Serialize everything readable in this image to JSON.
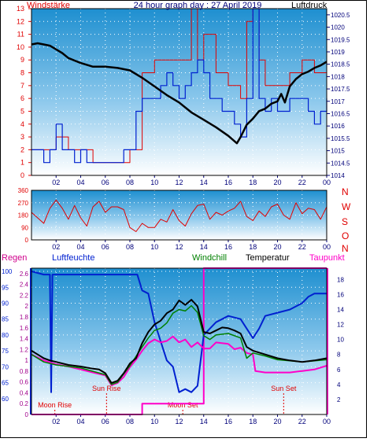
{
  "header": {
    "left_label": "Windstärke",
    "title": "24 hour graph day : 27 April 2019",
    "right_label": "Luftdruck"
  },
  "colors": {
    "red": "#e00000",
    "blue": "#0020d0",
    "black": "#000000",
    "magenta": "#ff00c8",
    "green": "#008000",
    "purple": "#a0008c",
    "navy": "#00007a",
    "sky_top": "#1e8fd0",
    "sky_bottom": "#ffffff"
  },
  "chart_data": [
    {
      "id": "wind-pressure",
      "type": "line",
      "title": "24 hour graph day : 27 April 2019",
      "x_ticks": [
        "02",
        "04",
        "06",
        "08",
        "10",
        "12",
        "14",
        "16",
        "18",
        "20",
        "22",
        "00"
      ],
      "xlim": [
        0,
        24
      ],
      "y_left_label": "Windstärke",
      "y_left_ticks": [
        "0",
        "1",
        "2",
        "3",
        "4",
        "5",
        "6",
        "7",
        "8",
        "9",
        "10",
        "11",
        "12",
        "13"
      ],
      "ylim_left": [
        0,
        13
      ],
      "y_right_label": "Luftdruck",
      "y_right_ticks": [
        "1014",
        "1014.5",
        "1015",
        "1015.5",
        "1016",
        "1016.5",
        "1017",
        "1017.5",
        "1018",
        "1018.5",
        "1019",
        "1019.5",
        "1020",
        "1020.5"
      ],
      "ylim_right": [
        1014,
        1020.75
      ],
      "series": [
        {
          "name": "Luftdruck",
          "axis": "right",
          "x": [
            0,
            0.5,
            1,
            1.5,
            2,
            2.5,
            3,
            4,
            5,
            6,
            7,
            8,
            9,
            10,
            11,
            12,
            13,
            14,
            15,
            16,
            16.7,
            17,
            17.5,
            18,
            18.5,
            19,
            19.5,
            20,
            20.3,
            20.6,
            21,
            21.5,
            22,
            22.5,
            23,
            23.5,
            24
          ],
          "y": [
            1019.3,
            1019.35,
            1019.3,
            1019.25,
            1019.1,
            1018.95,
            1018.75,
            1018.55,
            1018.4,
            1018.4,
            1018.35,
            1018.25,
            1017.95,
            1017.6,
            1017.25,
            1016.95,
            1016.55,
            1016.25,
            1015.95,
            1015.6,
            1015.3,
            1015.55,
            1016.05,
            1016.3,
            1016.6,
            1016.7,
            1016.9,
            1017.0,
            1017.3,
            1016.95,
            1017.6,
            1017.9,
            1018.1,
            1018.2,
            1018.35,
            1018.45,
            1018.6
          ]
        },
        {
          "name": "Windstärke",
          "axis": "left",
          "x": [
            0,
            0.5,
            1,
            1.5,
            2,
            2.5,
            3,
            3.5,
            4,
            4.5,
            5,
            5.5,
            6,
            6.5,
            7,
            7.5,
            8,
            8.5,
            9,
            9.5,
            10,
            10.5,
            11,
            11.5,
            12,
            12.5,
            13,
            13.5,
            14,
            14.5,
            15,
            15.5,
            16,
            16.5,
            17,
            17.5,
            18,
            18.5,
            19,
            19.5,
            20,
            20.5,
            21,
            21.5,
            22,
            22.5,
            23,
            23.5,
            24
          ],
          "y": [
            2,
            2,
            1,
            2,
            4,
            2,
            2,
            1,
            2,
            1,
            1,
            1,
            1,
            1,
            1,
            2,
            2,
            5,
            6,
            6,
            6,
            7,
            8,
            7,
            6,
            7,
            8,
            9,
            8,
            6,
            6,
            5,
            5,
            4,
            3,
            6,
            13,
            6,
            5,
            6,
            5,
            5,
            6,
            6,
            6,
            5,
            4,
            5,
            6
          ]
        },
        {
          "name": "Windböen",
          "axis": "left",
          "x": [
            0,
            1,
            2,
            3,
            4,
            5,
            6,
            7,
            8,
            9,
            10,
            11,
            12,
            12.5,
            13,
            13.5,
            14,
            15,
            16,
            17,
            17.5,
            18,
            18.5,
            19,
            20,
            21,
            22,
            23,
            24
          ],
          "y": [
            2,
            2,
            3,
            2,
            2,
            1,
            1,
            1,
            2,
            8,
            9,
            9,
            9,
            9,
            13,
            9,
            11,
            8,
            7,
            6,
            12,
            13,
            9,
            7,
            7,
            8,
            9,
            8,
            9
          ]
        }
      ]
    },
    {
      "id": "wind-direction",
      "type": "line",
      "x_ticks": [
        "02",
        "04",
        "06",
        "08",
        "10",
        "12",
        "14",
        "16",
        "18",
        "20",
        "22",
        "00"
      ],
      "xlim": [
        0,
        24
      ],
      "y_ticks": [
        "0",
        "90",
        "180",
        "270",
        "360"
      ],
      "ylim": [
        0,
        360
      ],
      "y_right_labels": [
        "N",
        "W",
        "S",
        "O",
        "N"
      ],
      "series": [
        {
          "name": "Windrichtung",
          "x": [
            0,
            0.5,
            1,
            1.5,
            2,
            2.5,
            3,
            3.5,
            4,
            4.5,
            5,
            5.5,
            6,
            6.5,
            7,
            7.5,
            8,
            8.5,
            9,
            9.5,
            10,
            10.5,
            11,
            11.5,
            12,
            12.5,
            13,
            13.5,
            14,
            14.5,
            15,
            15.5,
            16,
            16.5,
            17,
            17.5,
            18,
            18.5,
            19,
            19.5,
            20,
            20.5,
            21,
            21.5,
            22,
            22.5,
            23,
            23.5,
            24
          ],
          "y": [
            200,
            160,
            120,
            230,
            290,
            230,
            150,
            250,
            160,
            100,
            240,
            280,
            200,
            240,
            240,
            220,
            90,
            60,
            120,
            90,
            90,
            150,
            130,
            220,
            140,
            100,
            190,
            250,
            260,
            150,
            200,
            180,
            210,
            230,
            280,
            170,
            140,
            210,
            170,
            240,
            260,
            180,
            150,
            270,
            190,
            230,
            220,
            150,
            240
          ]
        }
      ]
    },
    {
      "id": "temperature-humidity",
      "type": "line",
      "x_ticks": [
        "02",
        "04",
        "06",
        "08",
        "10",
        "12",
        "14",
        "16",
        "18",
        "20",
        "22",
        "00"
      ],
      "xlim": [
        0,
        24
      ],
      "labels": {
        "rain": "Regen",
        "humidity": "Luftfeuchte",
        "windchill": "Windchill",
        "temperature": "Temperatur",
        "dewpoint": "Taupunkt"
      },
      "y_left_ticks": [
        "0",
        "0.2",
        "0.4",
        "0.6",
        "0.8",
        "1",
        "1.2",
        "1.4",
        "1.6",
        "1.8",
        "2",
        "2.2",
        "2.4",
        "2.6"
      ],
      "ylim_left": [
        0,
        2.7
      ],
      "y_hum_ticks": [
        "60",
        "65",
        "70",
        "75",
        "80",
        "85",
        "90",
        "95",
        "100"
      ],
      "ylim_hum": [
        55,
        101
      ],
      "y_right_ticks": [
        "2",
        "4",
        "6",
        "8",
        "10",
        "12",
        "14",
        "16",
        "18"
      ],
      "ylim_right": [
        0,
        19.5
      ],
      "annotations": [
        {
          "text": "Moon Rise",
          "x": 1.9
        },
        {
          "text": "Sun Rise",
          "x": 6.1
        },
        {
          "text": "Moon Set",
          "x": 12.3
        },
        {
          "text": "Sun Set",
          "x": 20.5
        }
      ],
      "series": [
        {
          "name": "Luftfeuchte",
          "axis": "hum",
          "x": [
            0,
            1,
            1.5,
            1.6,
            1.7,
            2,
            3,
            4,
            5,
            6,
            7,
            8,
            8.6,
            9,
            9.5,
            10,
            10.5,
            11,
            11.5,
            12,
            12.5,
            13,
            13.5,
            14,
            14.5,
            15,
            16,
            17,
            17.5,
            18,
            18.5,
            19,
            20,
            21,
            22,
            22.5,
            23,
            24
          ],
          "y": [
            100,
            99,
            99,
            62,
            99,
            99,
            99,
            99,
            99,
            99,
            99,
            99,
            99,
            94,
            93,
            84,
            78,
            72,
            70,
            62,
            63,
            62,
            64,
            80,
            82,
            84,
            86,
            85,
            82,
            79,
            82,
            86,
            87,
            88,
            90,
            92,
            93,
            93
          ]
        },
        {
          "name": "Temperatur",
          "axis": "right",
          "x": [
            0,
            0.5,
            1,
            1.5,
            2,
            3,
            4,
            5,
            5.5,
            6,
            6.5,
            7,
            7.5,
            8,
            8.5,
            9,
            9.5,
            10,
            10.5,
            11,
            11.5,
            12,
            12.5,
            13,
            13.5,
            14,
            14.5,
            15,
            15.5,
            16,
            16.5,
            17,
            17.5,
            18,
            19,
            20,
            21,
            22,
            23,
            24
          ],
          "y": [
            8.5,
            8,
            7.5,
            7.2,
            7,
            6.6,
            6.4,
            6.1,
            6.0,
            5.5,
            4.2,
            4.5,
            5.5,
            6.8,
            7.5,
            9.5,
            11,
            12,
            12.5,
            13.5,
            14,
            15.2,
            14.6,
            15.3,
            14.4,
            11,
            10.8,
            11.2,
            11.6,
            11.5,
            11.2,
            10.8,
            9,
            8.5,
            8,
            7.5,
            7.2,
            7.0,
            7.2,
            7.5
          ]
        },
        {
          "name": "Windchill",
          "axis": "right",
          "x": [
            0,
            1,
            2,
            4,
            6,
            6.5,
            7,
            8,
            9,
            9.5,
            10,
            10.5,
            11,
            11.5,
            12,
            12.5,
            13,
            13.5,
            14,
            14.5,
            15,
            16,
            17,
            17.5,
            18,
            19,
            20,
            22,
            24
          ],
          "y": [
            8,
            7,
            6.6,
            6.2,
            5.3,
            4.0,
            4.3,
            6.5,
            9,
            10.2,
            11.2,
            11.5,
            12.2,
            13.5,
            14,
            13.8,
            14.5,
            13.6,
            10.5,
            10,
            10.6,
            10.8,
            10.2,
            7.5,
            8.2,
            7.8,
            7.3,
            7.0,
            7.3
          ]
        },
        {
          "name": "Taupunkt",
          "axis": "right",
          "x": [
            0,
            0.5,
            1,
            2,
            3,
            4,
            5,
            6,
            6.5,
            7,
            7.5,
            8,
            8.5,
            9,
            9.5,
            10,
            10.5,
            11,
            11.5,
            12,
            12.5,
            13,
            13.5,
            14,
            14.5,
            15,
            16,
            16.5,
            17,
            17.5,
            18,
            18.2,
            19,
            20,
            21,
            22,
            23,
            24
          ],
          "y": [
            8.0,
            7.6,
            7.2,
            6.7,
            6.4,
            6.0,
            5.6,
            5.2,
            3.9,
            4.2,
            5.0,
            6.3,
            7.3,
            8.5,
            9.5,
            10,
            9.6,
            9.8,
            10.4,
            9.6,
            10,
            9,
            9.6,
            8.8,
            8.8,
            9.6,
            9.4,
            8.7,
            8.9,
            8.2,
            8.0,
            5.8,
            5.6,
            5.6,
            5.6,
            5.8,
            6.0,
            6.5
          ]
        },
        {
          "name": "Regen",
          "axis": "left",
          "x": [
            0,
            9,
            9,
            14,
            14,
            24
          ],
          "y": [
            0,
            0,
            0.2,
            0.2,
            2.7,
            2.7
          ]
        }
      ]
    }
  ]
}
